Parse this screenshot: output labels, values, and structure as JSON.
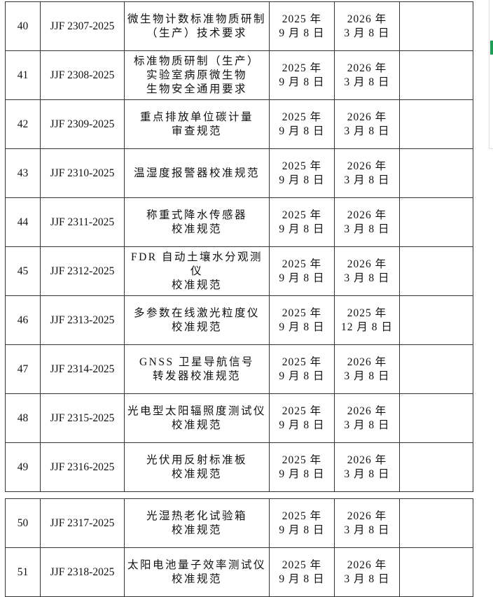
{
  "tables": [
    {
      "rows": [
        {
          "number": "40",
          "code": "JJF 2307-2025",
          "name": [
            "微生物计数标准物质研制",
            "（生产）技术要求"
          ],
          "published": [
            "2025 年",
            "9 月 8 日"
          ],
          "effective": [
            "2026 年",
            "3 月 8 日"
          ]
        },
        {
          "number": "41",
          "code": "JJF 2308-2025",
          "name": [
            "标准物质研制（生产）",
            "实验室病原微生物",
            "生物安全通用要求"
          ],
          "published": [
            "2025 年",
            "9 月 8 日"
          ],
          "effective": [
            "2026 年",
            "3 月 8 日"
          ]
        },
        {
          "number": "42",
          "code": "JJF 2309-2025",
          "name": [
            "重点排放单位碳计量",
            "审查规范"
          ],
          "published": [
            "2025 年",
            "9 月 8 日"
          ],
          "effective": [
            "2026 年",
            "3 月 8 日"
          ]
        },
        {
          "number": "43",
          "code": "JJF 2310-2025",
          "name": [
            "温湿度报警器校准规范"
          ],
          "published": [
            "2025 年",
            "9 月 8 日"
          ],
          "effective": [
            "2026 年",
            "3 月 8 日"
          ]
        },
        {
          "number": "44",
          "code": "JJF 2311-2025",
          "name": [
            "称重式降水传感器",
            "校准规范"
          ],
          "published": [
            "2025 年",
            "9 月 8 日"
          ],
          "effective": [
            "2026 年",
            "3 月 8 日"
          ]
        },
        {
          "number": "45",
          "code": "JJF 2312-2025",
          "name": [
            "FDR 自动土壤水分观测仪",
            "校准规范"
          ],
          "published": [
            "2025 年",
            "9 月 8 日"
          ],
          "effective": [
            "2026 年",
            "3 月 8 日"
          ]
        },
        {
          "number": "46",
          "code": "JJF 2313-2025",
          "name": [
            "多参数在线激光粒度仪",
            "校准规范"
          ],
          "published": [
            "2025 年",
            "9 月 8 日"
          ],
          "effective": [
            "2025 年",
            "12 月 8 日"
          ]
        },
        {
          "number": "47",
          "code": "JJF 2314-2025",
          "name": [
            "GNSS 卫星导航信号",
            "转发器校准规范"
          ],
          "published": [
            "2025 年",
            "9 月 8 日"
          ],
          "effective": [
            "2026 年",
            "3 月 8 日"
          ]
        },
        {
          "number": "48",
          "code": "JJF 2315-2025",
          "name": [
            "光电型太阳辐照度测试仪",
            "校准规范"
          ],
          "published": [
            "2025 年",
            "9 月 8 日"
          ],
          "effective": [
            "2026 年",
            "3 月 8 日"
          ]
        },
        {
          "number": "49",
          "code": "JJF 2316-2025",
          "name": [
            "光伏用反射标准板",
            "校准规范"
          ],
          "published": [
            "2025 年",
            "9 月 8 日"
          ],
          "effective": [
            "2026 年",
            "3 月 8 日"
          ]
        }
      ]
    },
    {
      "rows": [
        {
          "number": "50",
          "code": "JJF 2317-2025",
          "name": [
            "光湿热老化试验箱",
            "校准规范"
          ],
          "published": [
            "2025 年",
            "9 月 8 日"
          ],
          "effective": [
            "2026 年",
            "3 月 8 日"
          ]
        },
        {
          "number": "51",
          "code": "JJF 2318-2025",
          "name": [
            "太阳电池量子效率测试仪",
            "校准规范"
          ],
          "published": [
            "2025 年",
            "9 月 8 日"
          ],
          "effective": [
            "2026 年",
            "3 月 8 日"
          ]
        }
      ]
    }
  ]
}
